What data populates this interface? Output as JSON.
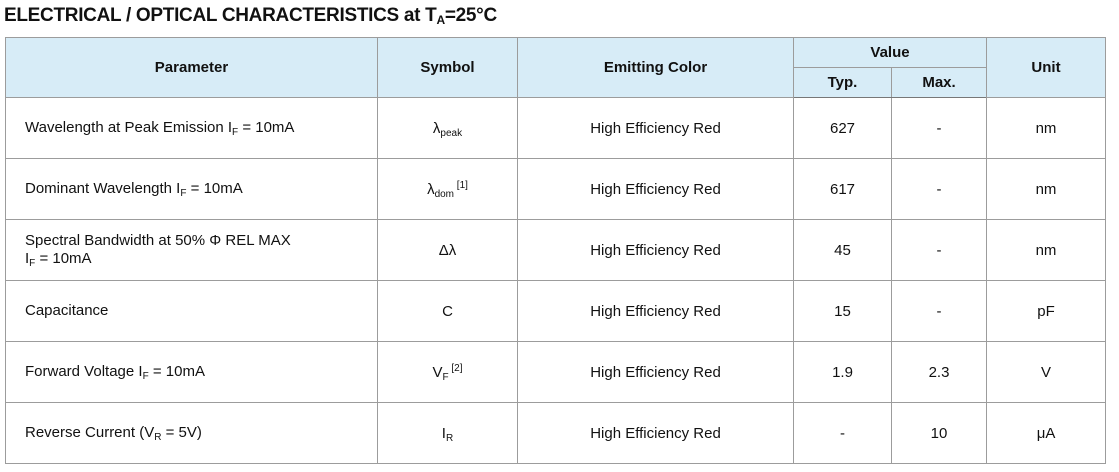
{
  "title": {
    "prefix": "ELECTRICAL / OPTICAL CHARACTERISTICS at T",
    "sub": "A",
    "suffix": "=25°C"
  },
  "headers": {
    "parameter": "Parameter",
    "symbol": "Symbol",
    "emitting_color": "Emitting Color",
    "value": "Value",
    "typ": "Typ.",
    "max": "Max.",
    "unit": "Unit"
  },
  "rows": [
    {
      "param": {
        "text": "Wavelength at Peak Emission I",
        "sub": "F",
        "after": " = 10mA"
      },
      "symbol": {
        "main": "λ",
        "sub": "peak",
        "sup": ""
      },
      "color": "High Efficiency Red",
      "typ": "627",
      "max": "-",
      "unit": "nm"
    },
    {
      "param": {
        "text": "Dominant Wavelength I",
        "sub": "F",
        "after": " = 10mA"
      },
      "symbol": {
        "main": "λ",
        "sub": "dom",
        "sup": " [1]"
      },
      "color": "High Efficiency Red",
      "typ": "617",
      "max": "-",
      "unit": "nm"
    },
    {
      "param": {
        "line1": "Spectral Bandwidth at 50% Φ REL MAX",
        "text": " I",
        "sub": "F",
        "after": " = 10mA"
      },
      "symbol": {
        "main": "Δλ",
        "sub": "",
        "sup": ""
      },
      "color": "High Efficiency Red",
      "typ": "45",
      "max": "-",
      "unit": "nm"
    },
    {
      "param": {
        "text": "Capacitance",
        "sub": "",
        "after": ""
      },
      "symbol": {
        "main": "C",
        "sub": "",
        "sup": ""
      },
      "color": "High Efficiency Red",
      "typ": "15",
      "max": "-",
      "unit": "pF"
    },
    {
      "param": {
        "text": "Forward Voltage I",
        "sub": "F",
        "after": " = 10mA"
      },
      "symbol": {
        "main": "V",
        "sub": "F",
        "sup": " [2]"
      },
      "color": "High Efficiency Red",
      "typ": "1.9",
      "max": "2.3",
      "unit": "V"
    },
    {
      "param": {
        "text": "Reverse Current (V",
        "sub": "R",
        "after": " = 5V)"
      },
      "symbol": {
        "main": "I",
        "sub": "R",
        "sup": ""
      },
      "color": "High Efficiency Red",
      "typ": "-",
      "max": "10",
      "unit": "μA"
    }
  ]
}
